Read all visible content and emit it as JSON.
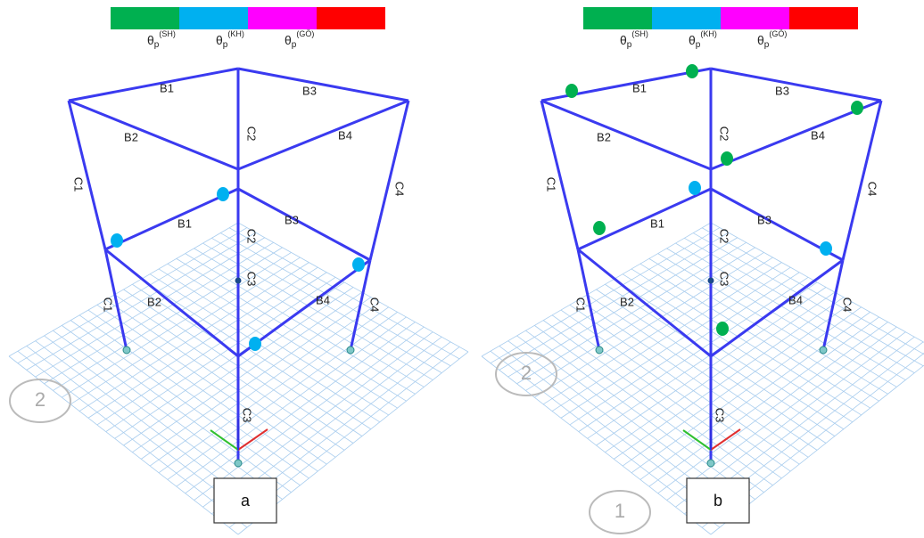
{
  "legend": [
    {
      "symbol": "θ",
      "sub": "p",
      "sup": "(SH)",
      "color": "#00b050"
    },
    {
      "symbol": "θ",
      "sub": "p",
      "sup": "(KH)",
      "color": "#00b0f0"
    },
    {
      "symbol": "θ",
      "sub": "p",
      "sup": "(GÖ)",
      "color": "#ff00ff"
    },
    {
      "color": "#ff0000"
    }
  ],
  "panels": [
    {
      "label": "a",
      "members": [
        "B1",
        "B3",
        "B2",
        "B4",
        "C1",
        "C2",
        "C4",
        "B1",
        "B3",
        "C2",
        "C3",
        "C1",
        "B2",
        "B4",
        "C4",
        "C3"
      ],
      "grid_labels": [
        "2"
      ]
    },
    {
      "label": "b",
      "members": [
        "B1",
        "B3",
        "B2",
        "B4",
        "C1",
        "C2",
        "C4",
        "B1",
        "B3",
        "C2",
        "C3",
        "C1",
        "B2",
        "B4",
        "C4",
        "C3"
      ],
      "grid_labels": [
        "2",
        "1"
      ]
    }
  ]
}
